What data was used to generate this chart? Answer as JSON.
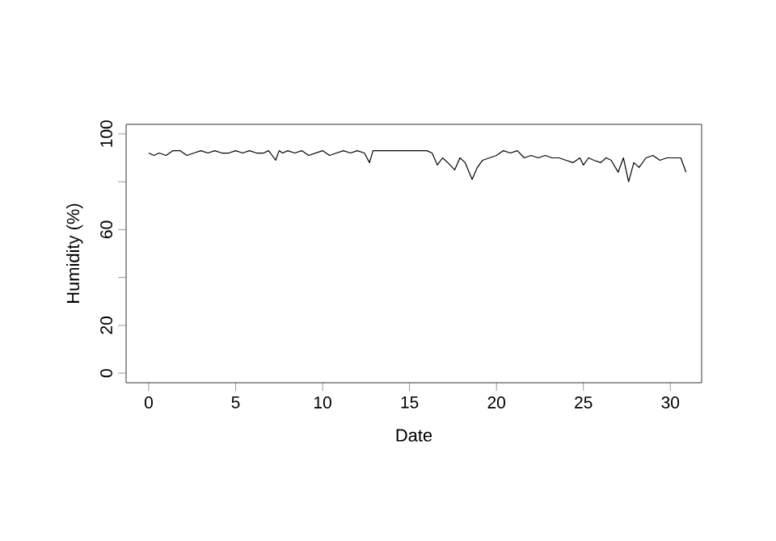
{
  "chart_data": {
    "type": "line",
    "xlabel": "Date",
    "ylabel": "Humidity (%)",
    "x": [
      0,
      0.3,
      0.6,
      1,
      1.4,
      1.8,
      2.2,
      2.6,
      3,
      3.4,
      3.8,
      4.2,
      4.6,
      5,
      5.4,
      5.8,
      6.2,
      6.6,
      6.9,
      7.1,
      7.3,
      7.5,
      7.7,
      8,
      8.4,
      8.8,
      9.2,
      9.6,
      10,
      10.4,
      10.8,
      11.2,
      11.6,
      12,
      12.4,
      12.7,
      12.9,
      13.3,
      14,
      15,
      16,
      16.3,
      16.6,
      16.9,
      17.2,
      17.6,
      17.9,
      18.2,
      18.6,
      18.9,
      19.2,
      19.6,
      20,
      20.4,
      20.8,
      21.2,
      21.6,
      22,
      22.4,
      22.8,
      23.2,
      23.6,
      24,
      24.4,
      24.8,
      25,
      25.3,
      25.6,
      26,
      26.3,
      26.6,
      27,
      27.3,
      27.6,
      27.9,
      28.2,
      28.6,
      29,
      29.4,
      29.8,
      30.2,
      30.6,
      30.9
    ],
    "values": [
      92,
      91,
      92,
      91,
      93,
      93,
      91,
      92,
      93,
      92,
      93,
      92,
      92,
      93,
      92,
      93,
      92,
      92,
      93,
      91,
      89,
      93,
      92,
      93,
      92,
      93,
      91,
      92,
      93,
      91,
      92,
      93,
      92,
      93,
      92,
      88,
      93,
      93,
      93,
      93,
      93,
      92,
      87,
      90,
      88,
      85,
      90,
      88,
      81,
      86,
      89,
      90,
      91,
      93,
      92,
      93,
      90,
      91,
      90,
      91,
      90,
      90,
      89,
      88,
      90,
      87,
      90,
      89,
      88,
      90,
      89,
      84,
      90,
      80,
      88,
      86,
      90,
      91,
      89,
      90,
      90,
      90,
      84
    ],
    "color": "#000000",
    "xlim": [
      -1.3,
      31.8
    ],
    "ylim": [
      -4,
      104
    ],
    "xticks": [
      0,
      5,
      10,
      15,
      20,
      25,
      30
    ],
    "yticks": [
      0,
      20,
      {
        "value": 40,
        "label": null
      },
      60,
      {
        "value": 80,
        "label": null
      },
      100
    ]
  }
}
